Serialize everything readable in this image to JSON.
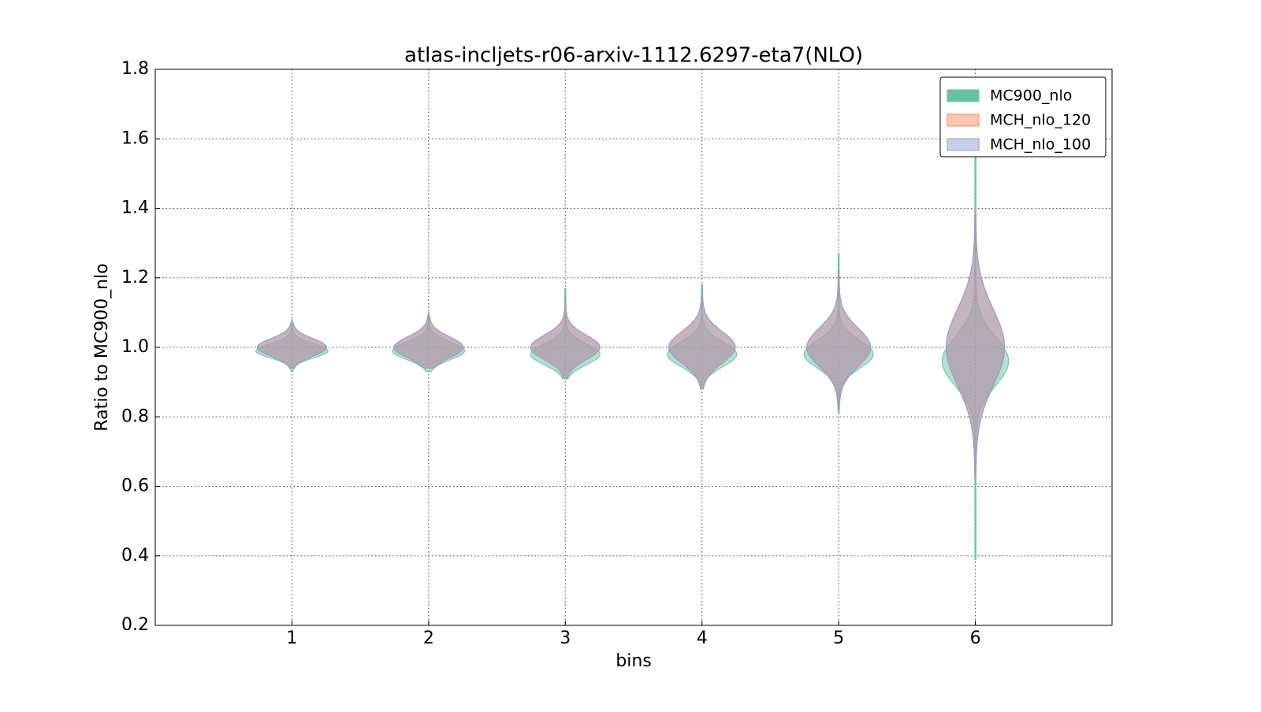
{
  "chart_data": {
    "type": "violin",
    "title": "atlas-incljets-r06-arxiv-1112.6297-eta7(NLO)",
    "xlabel": "bins",
    "ylabel": "Ratio to MC900_nlo",
    "x": [
      1,
      2,
      3,
      4,
      5,
      6
    ],
    "xlim": [
      0,
      7
    ],
    "xticks": [
      1,
      2,
      3,
      4,
      5,
      6
    ],
    "ylim": [
      0.2,
      1.8
    ],
    "yticks": [
      0.2,
      0.4,
      0.6,
      0.8,
      {
        "value": 1,
        "label": "1.0"
      },
      1.2,
      1.4,
      1.6,
      1.8
    ],
    "grid": true,
    "legend": "upper right",
    "series": [
      {
        "name": "MC900_nlo",
        "color": "#66c2a5",
        "min": [
          0.93,
          0.93,
          0.91,
          0.88,
          0.81,
          0.39
        ],
        "max": [
          1.08,
          1.1,
          1.17,
          1.18,
          1.27,
          1.58
        ],
        "mode": [
          0.99,
          0.99,
          0.98,
          0.98,
          0.98,
          0.96
        ],
        "width": [
          0.26,
          0.26,
          0.25,
          0.25,
          0.25,
          0.24
        ],
        "spread": [
          0.02,
          0.025,
          0.03,
          0.035,
          0.04,
          0.07
        ]
      },
      {
        "name": "MCH_nlo_120",
        "color": "#fc8d62",
        "min": [
          0.94,
          0.94,
          0.91,
          0.88,
          0.82,
          0.62
        ],
        "max": [
          1.07,
          1.09,
          1.14,
          1.16,
          1.22,
          1.4
        ],
        "mode": [
          1.0,
          1.0,
          1.0,
          1.0,
          1.0,
          1.0
        ],
        "width": [
          0.25,
          0.25,
          0.25,
          0.24,
          0.23,
          0.21
        ],
        "spread": [
          0.025,
          0.03,
          0.035,
          0.045,
          0.055,
          0.11
        ]
      },
      {
        "name": "MCH_nlo_100",
        "color": "#8da0cb",
        "min": [
          0.94,
          0.94,
          0.91,
          0.88,
          0.82,
          0.63
        ],
        "max": [
          1.07,
          1.09,
          1.14,
          1.16,
          1.22,
          1.38
        ],
        "mode": [
          1.0,
          1.0,
          1.0,
          1.0,
          1.0,
          1.0
        ],
        "width": [
          0.25,
          0.25,
          0.25,
          0.24,
          0.23,
          0.21
        ],
        "spread": [
          0.025,
          0.03,
          0.035,
          0.045,
          0.055,
          0.11
        ]
      }
    ]
  }
}
